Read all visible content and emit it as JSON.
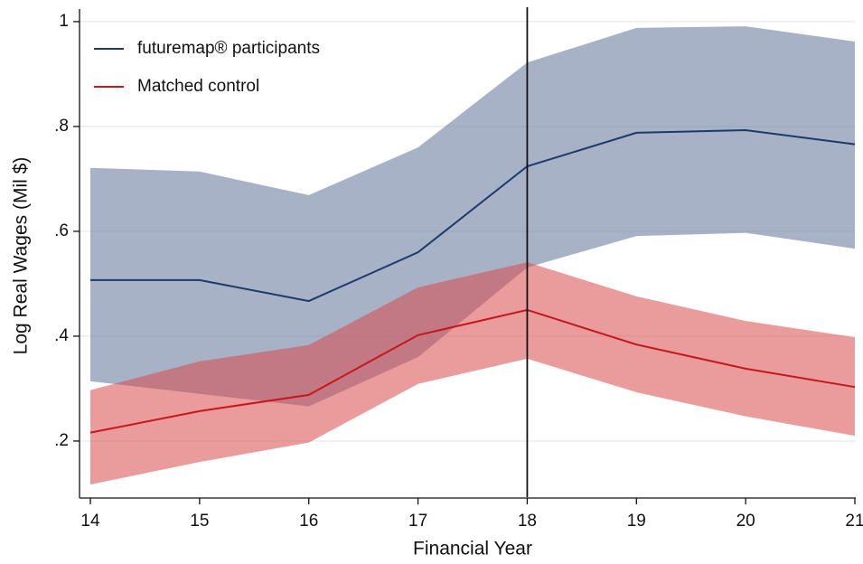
{
  "chart_data": {
    "type": "line",
    "x_label": "Financial Year",
    "y_label": "Log Real Wages (Mil $)",
    "x": [
      14,
      15,
      16,
      17,
      18,
      19,
      20,
      21
    ],
    "xlim": [
      14,
      21
    ],
    "xticks": [
      14,
      15,
      16,
      17,
      18,
      19,
      20,
      21
    ],
    "ylim": [
      0.093,
      1.024
    ],
    "yticks": [
      {
        "value": 0.2,
        "label": ".2"
      },
      {
        "value": 0.4,
        "label": ".4"
      },
      {
        "value": 0.6,
        "label": ".6"
      },
      {
        "value": 0.8,
        "label": ".8"
      },
      1
    ],
    "grid": true,
    "legend": "top-left",
    "vline": 18,
    "series": [
      {
        "name": "futuremap® participants",
        "color": "#1b3a6b",
        "band_color": "#6c7fa0",
        "values": [
          0.507,
          0.507,
          0.467,
          0.56,
          0.724,
          0.788,
          0.793,
          0.766
        ],
        "upper": [
          0.721,
          0.714,
          0.669,
          0.76,
          0.922,
          0.988,
          0.991,
          0.962
        ],
        "lower": [
          0.314,
          0.29,
          0.266,
          0.36,
          0.531,
          0.591,
          0.597,
          0.567
        ]
      },
      {
        "name": "Matched control",
        "color": "#c8161d",
        "band_color": "#d84a4c",
        "values": [
          0.216,
          0.257,
          0.288,
          0.402,
          0.45,
          0.384,
          0.338,
          0.303
        ],
        "upper": [
          0.297,
          0.352,
          0.383,
          0.493,
          0.541,
          0.476,
          0.429,
          0.398
        ],
        "lower": [
          0.117,
          0.16,
          0.197,
          0.309,
          0.357,
          0.293,
          0.247,
          0.21
        ]
      }
    ]
  }
}
